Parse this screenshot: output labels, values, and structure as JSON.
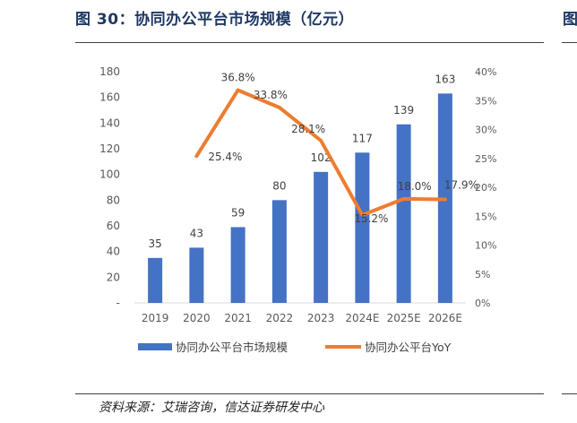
{
  "figure": {
    "title": "图 30：协同办公平台市场规模（亿元）",
    "next_title_fragment": "图",
    "source": "资料来源：艾瑞咨询，信达证券研发中心"
  },
  "chart_data": {
    "type": "bar",
    "categories": [
      "2019",
      "2020",
      "2021",
      "2022",
      "2023",
      "2024E",
      "2025E",
      "2026E"
    ],
    "series": [
      {
        "name": "协同办公平台市场规模",
        "type": "bar",
        "axis": "left",
        "color": "#4472c4",
        "values": [
          35,
          43,
          59,
          80,
          102,
          117,
          139,
          163
        ],
        "labels": [
          "35",
          "43",
          "59",
          "80",
          "102",
          "117",
          "139",
          "163"
        ]
      },
      {
        "name": "协同办公平台YoY",
        "type": "line",
        "axis": "right",
        "color": "#ed7d31",
        "values": [
          null,
          25.4,
          36.8,
          33.8,
          28.1,
          15.2,
          18.0,
          17.9
        ],
        "labels": [
          "",
          "25.4%",
          "36.8%",
          "33.8%",
          "28.1%",
          "15.2%",
          "18.0%",
          "17.9%"
        ]
      }
    ],
    "ylim": [
      0,
      180
    ],
    "y_ticks": [
      "-",
      "20",
      "40",
      "60",
      "80",
      "100",
      "120",
      "140",
      "160",
      "180"
    ],
    "y2lim": [
      0,
      40
    ],
    "y2_ticks": [
      "0%",
      "5%",
      "10%",
      "15%",
      "20%",
      "25%",
      "30%",
      "35%",
      "40%"
    ],
    "grid": false,
    "legend_position": "bottom"
  }
}
